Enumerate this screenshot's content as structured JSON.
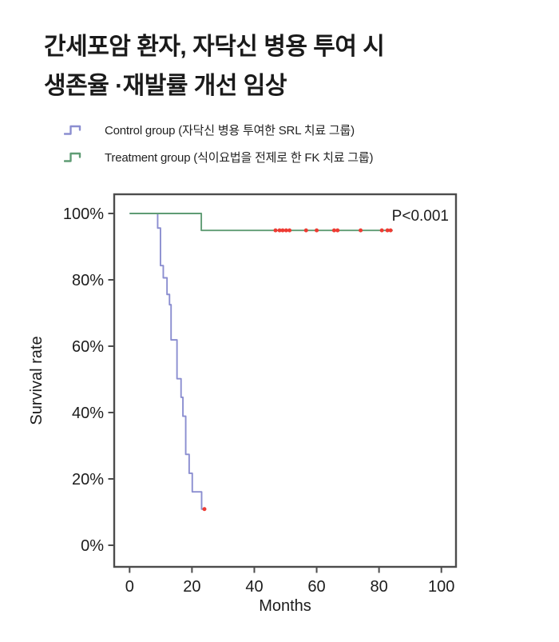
{
  "header": {
    "title_line1": "간세포암 환자, 자닥신 병용 투여 시",
    "title_line2": "생존율 ·재발률 개선 임상"
  },
  "legend": {
    "items": [
      {
        "label": "Control group (자닥신 병용 투여한 SRL 치료 그룹)",
        "color": "#8b8ed0"
      },
      {
        "label": "Treatment group (식이요법을 전제로 한 FK 치료 그룹)",
        "color": "#5f9c74"
      }
    ]
  },
  "chart_data": {
    "type": "line",
    "subtype": "kaplan-meier-step",
    "title": "",
    "xlabel": "Months",
    "ylabel": "Survival rate",
    "x_ticks": [
      0,
      20,
      40,
      60,
      80,
      100
    ],
    "y_ticks": [
      100,
      80,
      60,
      40,
      20,
      0
    ],
    "y_tick_suffix": "%",
    "xlim": [
      -5,
      105
    ],
    "ylim": [
      -6.5,
      106
    ],
    "grid": false,
    "legend_position": "above-plot",
    "annotation": {
      "text": "P<0.001"
    },
    "censor_color": "#ee3b33",
    "axis_color": "#4c4c4c",
    "text_color": "#1c1c1c",
    "series": [
      {
        "name": "Control group (SRL)",
        "color": "#8b8ed0",
        "start": [
          0,
          100
        ],
        "drops": [
          [
            9,
            95.6
          ],
          [
            9.9,
            84.3
          ],
          [
            10.8,
            80.6
          ],
          [
            12,
            75.6
          ],
          [
            12.8,
            72.5
          ],
          [
            13.3,
            61.9
          ],
          [
            15.2,
            50.2
          ],
          [
            16.5,
            44.6
          ],
          [
            17.1,
            38.9
          ],
          [
            18,
            27.4
          ],
          [
            19.1,
            21.7
          ],
          [
            20.1,
            16.1
          ],
          [
            23.1,
            10.9
          ]
        ],
        "end_x": 24,
        "censors": [
          [
            24,
            10.9
          ]
        ]
      },
      {
        "name": "Treatment group (FK)",
        "color": "#5f9c74",
        "start": [
          0,
          100
        ],
        "drops": [
          [
            23,
            94.9
          ]
        ],
        "end_x": 84.4,
        "censors": [
          [
            46.8,
            94.9
          ],
          [
            48.1,
            94.9
          ],
          [
            49.1,
            94.9
          ],
          [
            50.2,
            94.9
          ],
          [
            51.3,
            94.9
          ],
          [
            56.6,
            94.9
          ],
          [
            60,
            94.9
          ],
          [
            65.6,
            94.9
          ],
          [
            66.7,
            94.9
          ],
          [
            74.1,
            94.9
          ],
          [
            80.9,
            94.9
          ],
          [
            82.7,
            94.9
          ],
          [
            83.7,
            94.9
          ]
        ]
      }
    ]
  }
}
